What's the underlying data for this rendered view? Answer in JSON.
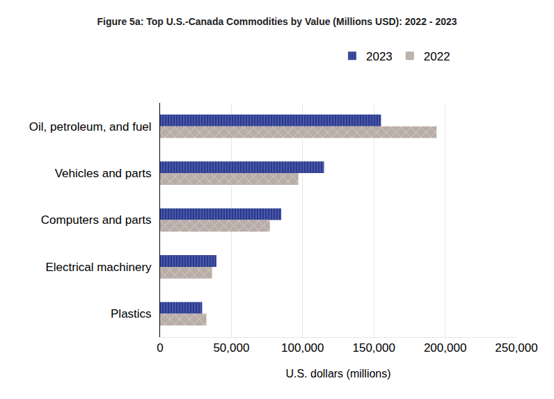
{
  "chart_data": {
    "type": "bar",
    "title": "Figure 5a: Top U.S.-Canada Commodities by Value (Millions USD): 2022 - 2023",
    "orientation": "horizontal",
    "x_label": "U.S. dollars (millions)",
    "categories": [
      "Oil, petroleum, and fuel",
      "Vehicles and parts",
      "Computers and parts",
      "Electrical machinery",
      "Plastics"
    ],
    "series": [
      {
        "name": "2023",
        "color": "#2b3a8c",
        "values": [
          155000,
          115000,
          85000,
          39500,
          29500
        ]
      },
      {
        "name": "2022",
        "color": "#b9ada8",
        "values": [
          194000,
          97000,
          77000,
          36500,
          32500
        ]
      }
    ],
    "xlim": [
      0,
      250000
    ],
    "xticks": [
      0,
      {
        "value": 50000,
        "label": "50,000"
      },
      {
        "value": 100000,
        "label": "100,000"
      },
      {
        "value": 150000,
        "label": "150,000"
      },
      {
        "value": 200000,
        "label": "200,000"
      },
      {
        "value": 250000,
        "label": "250,000"
      }
    ],
    "grid": true,
    "legend": "top"
  }
}
